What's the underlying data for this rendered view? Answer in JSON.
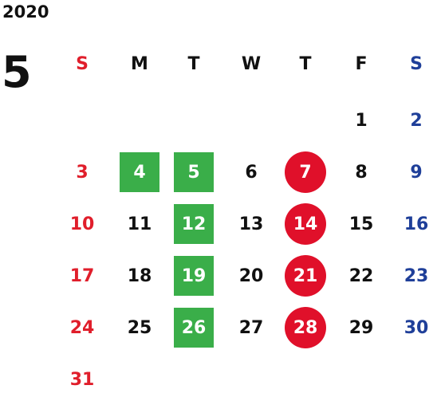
{
  "year": "2020",
  "month": "5",
  "weekdays": [
    "S",
    "M",
    "T",
    "W",
    "T",
    "F",
    "S"
  ],
  "colors": {
    "sunday": "#e01e2b",
    "saturday": "#1f3f99",
    "green_highlight": "#3aae49",
    "red_highlight": "#e0102a"
  },
  "weeks": [
    [
      "",
      "",
      "",
      "",
      "",
      "1",
      "2"
    ],
    [
      "3",
      "4",
      "5",
      "6",
      "7",
      "8",
      "9"
    ],
    [
      "10",
      "11",
      "12",
      "13",
      "14",
      "15",
      "16"
    ],
    [
      "17",
      "18",
      "19",
      "20",
      "21",
      "22",
      "23"
    ],
    [
      "24",
      "25",
      "26",
      "27",
      "28",
      "29",
      "30"
    ],
    [
      "31",
      "",
      "",
      "",
      "",
      "",
      ""
    ]
  ],
  "green_days": [
    "4",
    "5",
    "12",
    "19",
    "26"
  ],
  "red_circle_days": [
    "7",
    "14",
    "21",
    "28"
  ]
}
